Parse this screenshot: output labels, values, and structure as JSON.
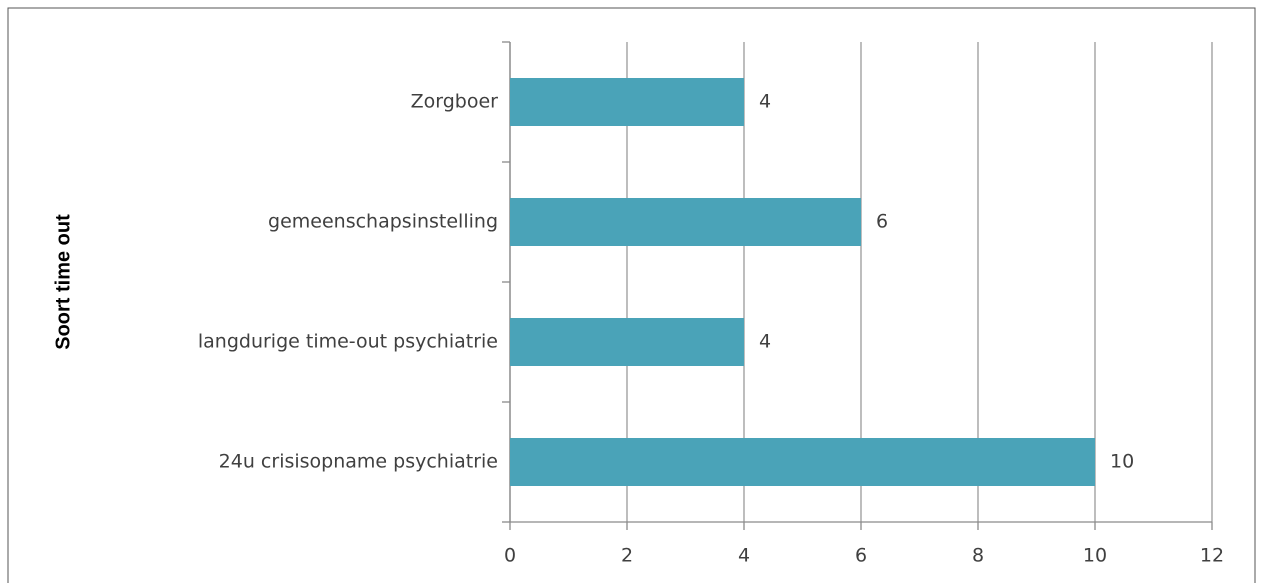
{
  "chart_data": {
    "type": "bar",
    "orientation": "horizontal",
    "ylabel": "Soort time out",
    "categories": [
      "Zorgboer",
      "gemeenschapsinstelling",
      "langdurige time-out psychiatrie",
      "24u crisisopname psychiatrie"
    ],
    "values": [
      4,
      6,
      4,
      10
    ],
    "color": "#4aa3b8",
    "xlim": [
      0,
      12
    ],
    "xticks": [
      0,
      2,
      4,
      6,
      8,
      10,
      12
    ],
    "grid": true
  }
}
